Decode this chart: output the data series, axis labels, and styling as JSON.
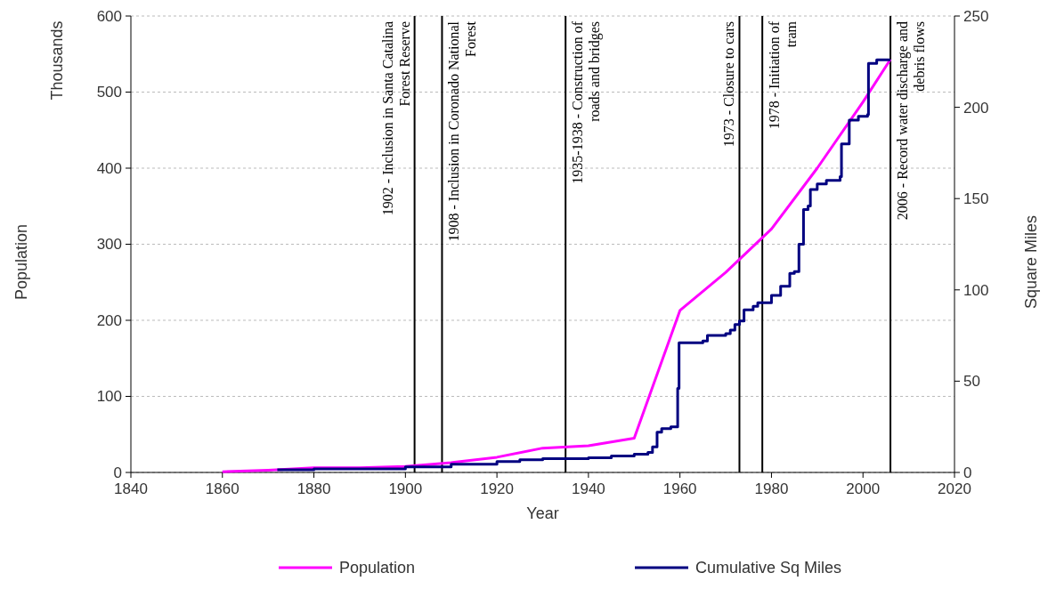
{
  "chart_data": {
    "type": "line",
    "xlabel": "Year",
    "ylabel": "Population",
    "y2label": "Square Miles",
    "annotations": [
      "Thousands"
    ],
    "xlim": [
      1840,
      2020
    ],
    "xticks": [
      1840,
      1860,
      1880,
      1900,
      1920,
      1940,
      1960,
      1980,
      2000,
      2020
    ],
    "ylim": [
      0,
      600
    ],
    "yticks": [
      0,
      100,
      200,
      300,
      400,
      500,
      600
    ],
    "y2lim": [
      0,
      250
    ],
    "y2ticks": [
      0,
      50,
      100,
      150,
      200,
      250
    ],
    "grid": "y",
    "legend": "bottom",
    "marker": "none",
    "line_style": "solid",
    "series": [
      {
        "name": "Population",
        "color": "#ff00ff",
        "type": "line",
        "x": [
          1860,
          1870,
          1880,
          1890,
          1900,
          1910,
          1920,
          1930,
          1940,
          1950,
          1960,
          1970,
          1980,
          1990,
          2000,
          2006
        ],
        "values": [
          1,
          3,
          6,
          6,
          8,
          13,
          20,
          32,
          35,
          45,
          213,
          263,
          320,
          400,
          487,
          543
        ]
      },
      {
        "name": "Cumulative Sq Miles",
        "color": "#000080",
        "type": "step",
        "axis": "y2",
        "x": [
          1872,
          1880,
          1900,
          1910,
          1920,
          1925,
          1930,
          1940,
          1945,
          1950,
          1953,
          1954,
          1955,
          1956,
          1958,
          1959.5,
          1959.8,
          1965,
          1966,
          1970,
          1971,
          1972,
          1973,
          1974,
          1976,
          1977,
          1980,
          1982,
          1984,
          1985,
          1986,
          1987,
          1988,
          1988.5,
          1990,
          1992,
          1995,
          1995.3,
          1997,
          1999,
          2001,
          2001.2,
          2003,
          2006
        ],
        "values": [
          1.5,
          2,
          3,
          4.5,
          6,
          7,
          7.5,
          8,
          9,
          10,
          11,
          14,
          22,
          24,
          25,
          46,
          71,
          72,
          75,
          76,
          78,
          81,
          83,
          89,
          91,
          93,
          97,
          102,
          109,
          110,
          125,
          144,
          146,
          155,
          158,
          160,
          162,
          180,
          193,
          195,
          196,
          224,
          226,
          226
        ]
      }
    ],
    "ref_lines": [
      {
        "axis": "x",
        "value": 1902,
        "label": "1902 - Inclusion in Santa Catalina\nForest Reserve",
        "color": "#000000"
      },
      {
        "axis": "x",
        "value": 1908,
        "label": "1908 - Inclusion in Coronado National\nForest",
        "color": "#000000"
      },
      {
        "axis": "x",
        "value": 1935,
        "label": "1935-1938 - Construction of\nroads and bridges",
        "color": "#000000"
      },
      {
        "axis": "x",
        "value": 1973,
        "label": "1973 - Closure to cars",
        "color": "#000000"
      },
      {
        "axis": "x",
        "value": 1978,
        "label": "1978 - Initiation of\ntram",
        "color": "#000000"
      },
      {
        "axis": "x",
        "value": 2006,
        "label": "2006 - Record water discharge and\ndebris flows",
        "color": "#000000"
      }
    ]
  }
}
